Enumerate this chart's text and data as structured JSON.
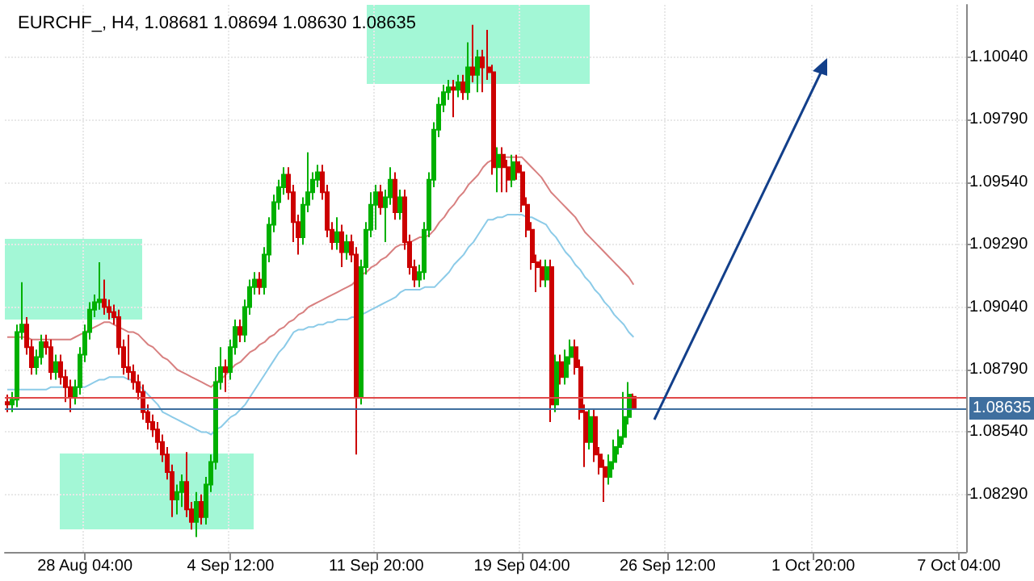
{
  "chart_data": {
    "type": "candlestick",
    "title": "EURCHF_, H4, 1.08681 1.08694 1.08630 1.08635",
    "categories": [
      null,
      null,
      null,
      null,
      null,
      null,
      null,
      null,
      null,
      null,
      null,
      null,
      null,
      null,
      null,
      null,
      "28 Aug 04:00",
      null,
      null,
      null,
      null,
      null,
      null,
      null,
      null,
      null,
      null,
      null,
      null,
      null,
      null,
      null,
      null,
      null,
      null,
      null,
      null,
      null,
      null,
      null,
      null,
      null,
      null,
      null,
      null,
      null,
      "4 Sep 12:00",
      null,
      null,
      null,
      null,
      null,
      null,
      null,
      null,
      null,
      null,
      null,
      null,
      null,
      null,
      null,
      null,
      null,
      null,
      null,
      null,
      null,
      null,
      null,
      null,
      null,
      null,
      null,
      null,
      null,
      "11 Sep 20:00",
      null,
      null,
      null,
      null,
      null,
      null,
      null,
      null,
      null,
      null,
      null,
      null,
      null,
      null,
      null,
      null,
      null,
      null,
      null,
      null,
      null,
      null,
      null,
      null,
      null,
      null,
      null,
      null,
      null,
      "19 Sep 04:00",
      null,
      null,
      null,
      null,
      null,
      null,
      null,
      null,
      null,
      null,
      null,
      null,
      null,
      null,
      null,
      null,
      null,
      null,
      null,
      null,
      null,
      null,
      null,
      null,
      null,
      null,
      null,
      null,
      null,
      "26 Sep 12:00",
      null,
      null,
      null,
      null,
      null,
      null,
      null,
      null,
      null,
      null,
      null,
      null,
      null,
      null,
      null,
      null,
      null,
      null,
      null,
      null,
      null,
      null,
      null,
      null,
      null,
      null,
      null,
      null,
      null,
      "1 Oct 20:00",
      null,
      null,
      null,
      null,
      null,
      null,
      null,
      null,
      null,
      null,
      null,
      null,
      null,
      null,
      null,
      null,
      null,
      null,
      null,
      null,
      null,
      null,
      null,
      null,
      null,
      null,
      null,
      null,
      null,
      "7 Oct 04:00",
      null
    ],
    "ohlc": [
      [
        1.0866,
        1.0869,
        1.0862,
        1.0865
      ],
      [
        1.0865,
        1.087,
        1.0862,
        1.0867
      ],
      [
        1.0867,
        1.0897,
        1.0864,
        1.0894
      ],
      [
        1.0894,
        1.0914,
        1.0891,
        1.0897
      ],
      [
        1.0897,
        1.09,
        1.0885,
        1.0888
      ],
      [
        1.0888,
        1.0891,
        1.0877,
        1.088
      ],
      [
        1.088,
        1.0887,
        1.0877,
        1.0884
      ],
      [
        1.0884,
        1.0893,
        1.0881,
        1.089
      ],
      [
        1.089,
        1.0893,
        1.0885,
        1.0888
      ],
      [
        1.0888,
        1.0891,
        1.0875,
        1.0878
      ],
      [
        1.0878,
        1.0885,
        1.0875,
        1.0882
      ],
      [
        1.0882,
        1.0885,
        1.0873,
        1.0876
      ],
      [
        1.0876,
        1.0879,
        1.0866,
        1.0872
      ],
      [
        1.0872,
        1.0875,
        1.0862,
        1.0868
      ],
      [
        1.0868,
        1.0875,
        1.0865,
        1.0872
      ],
      [
        1.0872,
        1.0888,
        1.0869,
        1.0885
      ],
      [
        1.0885,
        1.0897,
        1.0882,
        1.0894
      ],
      [
        1.0894,
        1.0906,
        1.0891,
        1.0903
      ],
      [
        1.0903,
        1.0909,
        1.09,
        1.0906
      ],
      [
        1.0906,
        1.0922,
        1.0903,
        1.0907
      ],
      [
        1.0907,
        1.0915,
        1.0901,
        1.0904
      ],
      [
        1.0904,
        1.0907,
        1.0899,
        1.0902
      ],
      [
        1.0902,
        1.0905,
        1.0897,
        1.09
      ],
      [
        1.09,
        1.0903,
        1.0885,
        1.0888
      ],
      [
        1.0888,
        1.0891,
        1.0877,
        1.088
      ],
      [
        1.088,
        1.0893,
        1.0875,
        1.0878
      ],
      [
        1.0878,
        1.0881,
        1.0871,
        1.0874
      ],
      [
        1.0874,
        1.0877,
        1.0867,
        1.087
      ],
      [
        1.087,
        1.0873,
        1.0859,
        1.0862
      ],
      [
        1.0862,
        1.0865,
        1.0855,
        1.0858
      ],
      [
        1.0858,
        1.0861,
        1.0852,
        1.0855
      ],
      [
        1.0855,
        1.0858,
        1.0847,
        1.085
      ],
      [
        1.085,
        1.0853,
        1.0842,
        1.0845
      ],
      [
        1.0845,
        1.0848,
        1.0835,
        1.0838
      ],
      [
        1.0838,
        1.0841,
        1.082,
        1.0827
      ],
      [
        1.0827,
        1.0833,
        1.0821,
        1.083
      ],
      [
        1.083,
        1.0837,
        1.0824,
        1.0834
      ],
      [
        1.0834,
        1.0846,
        1.082,
        1.0823
      ],
      [
        1.0823,
        1.0826,
        1.0815,
        1.0818
      ],
      [
        1.0818,
        1.083,
        1.0812,
        1.0826
      ],
      [
        1.0826,
        1.0829,
        1.0817,
        1.082
      ],
      [
        1.082,
        1.0836,
        1.0817,
        1.0833
      ],
      [
        1.0833,
        1.0845,
        1.083,
        1.0842
      ],
      [
        1.0842,
        1.088,
        1.0839,
        1.0874
      ],
      [
        1.0874,
        1.0888,
        1.0871,
        1.088
      ],
      [
        1.088,
        1.0883,
        1.087,
        1.0878
      ],
      [
        1.0878,
        1.0891,
        1.0875,
        1.0888
      ],
      [
        1.0888,
        1.0899,
        1.0885,
        1.0896
      ],
      [
        1.0896,
        1.0899,
        1.089,
        1.0893
      ],
      [
        1.0893,
        1.0907,
        1.089,
        1.0904
      ],
      [
        1.0904,
        1.0915,
        1.0901,
        1.0912
      ],
      [
        1.0912,
        1.0918,
        1.0909,
        1.0915
      ],
      [
        1.0915,
        1.0918,
        1.0909,
        1.0912
      ],
      [
        1.0912,
        1.0928,
        1.0909,
        1.0925
      ],
      [
        1.0925,
        1.094,
        1.0922,
        1.0937
      ],
      [
        1.0937,
        1.0949,
        1.0934,
        1.0946
      ],
      [
        1.0946,
        1.0955,
        1.0943,
        1.0952
      ],
      [
        1.0952,
        1.096,
        1.0949,
        1.0957
      ],
      [
        1.0957,
        1.096,
        1.0947,
        1.095
      ],
      [
        1.095,
        1.0953,
        1.093,
        1.0938
      ],
      [
        1.0938,
        1.0941,
        1.0925,
        1.0932
      ],
      [
        1.0932,
        1.0948,
        1.0929,
        1.0945
      ],
      [
        1.0945,
        1.0966,
        1.0942,
        1.095
      ],
      [
        1.095,
        1.0958,
        1.0947,
        1.0955
      ],
      [
        1.0955,
        1.0961,
        1.0952,
        1.0958
      ],
      [
        1.0958,
        1.0961,
        1.0947,
        1.095
      ],
      [
        1.095,
        1.0953,
        1.0932,
        1.0935
      ],
      [
        1.0935,
        1.0938,
        1.0927,
        1.093
      ],
      [
        1.093,
        1.094,
        1.0927,
        1.0934
      ],
      [
        1.0934,
        1.0937,
        1.092,
        1.0926
      ],
      [
        1.0926,
        1.0933,
        1.0923,
        1.093
      ],
      [
        1.093,
        1.0933,
        1.0922,
        1.0925
      ],
      [
        1.0925,
        1.0928,
        1.0845,
        1.0868
      ],
      [
        1.0868,
        1.0923,
        1.0865,
        1.092
      ],
      [
        1.092,
        1.0938,
        1.0917,
        1.0935
      ],
      [
        1.0935,
        1.095,
        1.0932,
        1.0945
      ],
      [
        1.0945,
        1.0953,
        1.0935,
        1.095
      ],
      [
        1.095,
        1.0953,
        1.0941,
        1.0944
      ],
      [
        1.0944,
        1.0951,
        1.093,
        1.0948
      ],
      [
        1.0948,
        1.096,
        1.0945,
        1.0955
      ],
      [
        1.0955,
        1.0958,
        1.0939,
        1.0942
      ],
      [
        1.0942,
        1.0951,
        1.0939,
        1.0948
      ],
      [
        1.0948,
        1.0951,
        1.0927,
        1.093
      ],
      [
        1.093,
        1.0933,
        1.0917,
        1.092
      ],
      [
        1.092,
        1.0923,
        1.0912,
        1.0915
      ],
      [
        1.0915,
        1.0921,
        1.0912,
        1.0918
      ],
      [
        1.0918,
        1.0938,
        1.0915,
        1.0935
      ],
      [
        1.0935,
        1.0958,
        1.0932,
        1.0955
      ],
      [
        1.0955,
        1.0978,
        1.0952,
        1.0975
      ],
      [
        1.0975,
        1.0988,
        1.0972,
        1.0985
      ],
      [
        1.0985,
        1.0993,
        1.0982,
        1.099
      ],
      [
        1.099,
        1.0995,
        1.0987,
        1.0992
      ],
      [
        1.0992,
        1.0995,
        1.098,
        1.0991
      ],
      [
        1.0991,
        1.0997,
        1.0988,
        1.0994
      ],
      [
        1.0994,
        1.0997,
        1.0987,
        1.099
      ],
      [
        1.099,
        1.101,
        1.0987,
        1.1
      ],
      [
        1.1,
        1.1017,
        1.0994,
        1.0997
      ],
      [
        1.0997,
        1.1007,
        1.099,
        1.1004
      ],
      [
        1.1004,
        1.1007,
        1.099,
        1.1
      ],
      [
        1.1,
        1.1015,
        1.0995,
        1.0998
      ],
      [
        1.0998,
        1.1001,
        1.0957,
        1.096
      ],
      [
        1.096,
        1.0968,
        1.095,
        1.0965
      ],
      [
        1.0965,
        1.0968,
        1.095,
        1.096
      ],
      [
        1.096,
        1.0963,
        1.095,
        1.0955
      ],
      [
        1.0955,
        1.0965,
        1.0952,
        1.0962
      ],
      [
        1.0962,
        1.0965,
        1.0955,
        1.0958
      ],
      [
        1.0958,
        1.0961,
        1.0942,
        1.0945
      ],
      [
        1.0945,
        1.0948,
        1.0932,
        1.0935
      ],
      [
        1.0935,
        1.0938,
        1.0919,
        1.0922
      ],
      [
        1.0922,
        1.0925,
        1.091,
        1.092
      ],
      [
        1.092,
        1.0923,
        1.0912,
        1.0915
      ],
      [
        1.0915,
        1.0923,
        1.0912,
        1.092
      ],
      [
        1.092,
        1.0923,
        1.0858,
        1.0865
      ],
      [
        1.0865,
        1.0885,
        1.0862,
        1.0882
      ],
      [
        1.0882,
        1.0885,
        1.0873,
        1.0876
      ],
      [
        1.0876,
        1.0887,
        1.0873,
        1.0884
      ],
      [
        1.0884,
        1.0891,
        1.0881,
        1.0888
      ],
      [
        1.0888,
        1.0891,
        1.0877,
        1.088
      ],
      [
        1.088,
        1.0883,
        1.0859,
        1.0862
      ],
      [
        1.0862,
        1.0865,
        1.084,
        1.085
      ],
      [
        1.085,
        1.0863,
        1.0847,
        1.086
      ],
      [
        1.086,
        1.0863,
        1.0842,
        1.0845
      ],
      [
        1.0845,
        1.0848,
        1.0837,
        1.084
      ],
      [
        1.084,
        1.0843,
        1.0826,
        1.0836
      ],
      [
        1.0836,
        1.0845,
        1.0833,
        1.0842
      ],
      [
        1.0842,
        1.0851,
        1.0839,
        1.0848
      ],
      [
        1.0848,
        1.0855,
        1.0845,
        1.0852
      ],
      [
        1.0852,
        1.087,
        1.0849,
        1.086
      ],
      [
        1.086,
        1.0874,
        1.0857,
        1.0869
      ],
      [
        1.08681,
        1.08694,
        1.0863,
        1.08635
      ],
      null,
      null,
      null,
      null,
      null,
      null,
      null,
      null,
      null,
      null,
      null,
      null,
      null,
      null,
      null,
      null,
      null,
      null,
      null,
      null,
      null,
      null,
      null,
      null,
      null,
      null,
      null,
      null,
      null,
      null,
      null,
      null,
      null,
      null,
      null,
      null,
      null,
      null,
      null,
      null,
      null,
      null,
      null,
      null,
      null,
      null,
      null,
      null,
      null,
      null,
      null,
      null,
      null,
      null,
      null,
      null,
      null,
      null,
      null,
      null,
      null,
      null,
      null,
      null,
      null,
      null,
      null,
      null
    ],
    "series": [
      {
        "type": "line",
        "color": "#d88080",
        "values": [
          1.0892,
          1.0892,
          1.0892,
          1.0892,
          1.0892,
          1.0891,
          1.0891,
          1.0891,
          1.0891,
          1.0891,
          1.0891,
          1.0891,
          1.0891,
          1.0891,
          1.0892,
          1.0893,
          1.0894,
          1.0895,
          1.0896,
          1.0897,
          1.0898,
          1.0898,
          1.0897,
          1.0896,
          1.0895,
          1.0894,
          1.0894,
          1.0893,
          1.0891,
          1.0889,
          1.0888,
          1.0886,
          1.0884,
          1.0883,
          1.0881,
          1.0879,
          1.0878,
          1.0877,
          1.0876,
          1.0875,
          1.0874,
          1.0873,
          1.0872,
          1.0874,
          1.0875,
          1.0877,
          1.0879,
          1.0881,
          1.0882,
          1.0884,
          1.0886,
          1.0887,
          1.0889,
          1.089,
          1.0892,
          1.0893,
          1.0895,
          1.0896,
          1.0898,
          1.0899,
          1.0901,
          1.0902,
          1.0904,
          1.0905,
          1.0906,
          1.0907,
          1.0908,
          1.0909,
          1.091,
          1.0911,
          1.0912,
          1.0913,
          1.0915,
          1.0917,
          1.0918,
          1.092,
          1.0921,
          1.0923,
          1.0924,
          1.0926,
          1.0928,
          1.0929,
          1.0929,
          1.093,
          1.0931,
          1.0932,
          1.0932,
          1.0933,
          1.0935,
          1.0938,
          1.094,
          1.0943,
          1.0945,
          1.0948,
          1.095,
          1.0953,
          1.0955,
          1.0957,
          1.096,
          1.0962,
          1.0963,
          1.0963,
          1.0964,
          1.0964,
          1.0964,
          1.0964,
          1.0964,
          1.0962,
          1.096,
          1.0958,
          1.0956,
          1.0953,
          1.095,
          1.0948,
          1.0946,
          1.0944,
          1.0942,
          1.094,
          1.0937,
          1.0934,
          1.0932,
          1.093,
          1.0928,
          1.0926,
          1.0924,
          1.0922,
          1.092,
          1.0918,
          1.0916,
          1.0913,
          null,
          null,
          null,
          null,
          null,
          null,
          null,
          null,
          null,
          null,
          null,
          null,
          null,
          null,
          null,
          null,
          null,
          null,
          null,
          null,
          null,
          null,
          null,
          null,
          null,
          null,
          null,
          null,
          null,
          null,
          null,
          null,
          null,
          null,
          null,
          null,
          null,
          null,
          null,
          null,
          null,
          null,
          null,
          null,
          null,
          null,
          null,
          null,
          null,
          null,
          null,
          null,
          null,
          null,
          null,
          null,
          null,
          null,
          null,
          null,
          null,
          null,
          null,
          null,
          null,
          null,
          null,
          null
        ]
      },
      {
        "type": "line",
        "color": "#8ccbe8",
        "values": [
          1.0871,
          1.0871,
          1.0871,
          1.0871,
          1.0871,
          1.0871,
          1.0871,
          1.0871,
          1.0871,
          1.0872,
          1.0872,
          1.0872,
          1.0872,
          null,
          1.0872,
          1.0872,
          1.0872,
          1.0873,
          1.0874,
          1.0875,
          1.0875,
          1.0876,
          1.0876,
          1.0876,
          1.0876,
          1.0875,
          1.0875,
          1.0873,
          1.0871,
          1.0869,
          1.0867,
          1.0865,
          1.0862,
          1.0861,
          1.086,
          1.0859,
          1.0858,
          1.0857,
          1.0856,
          1.0855,
          1.0854,
          1.0854,
          1.0853,
          1.0855,
          1.0856,
          1.0858,
          1.086,
          1.0861,
          1.0863,
          1.0865,
          1.0868,
          1.0871,
          1.0874,
          1.0877,
          1.088,
          1.0883,
          1.0886,
          1.0888,
          1.0891,
          1.0894,
          1.0895,
          1.0895,
          1.0896,
          1.0896,
          1.0897,
          1.0897,
          1.0898,
          1.0898,
          1.0899,
          1.0899,
          1.0899,
          1.09,
          1.09,
          1.0901,
          1.0902,
          1.0903,
          1.0904,
          1.0905,
          1.0906,
          1.0907,
          1.0908,
          1.091,
          1.0911,
          1.0911,
          1.0911,
          1.0911,
          1.0912,
          1.0912,
          1.0912,
          1.0914,
          1.0916,
          1.0918,
          1.0921,
          1.0923,
          1.0925,
          1.0928,
          1.093,
          1.0933,
          1.0936,
          1.0939,
          1.0939,
          1.094,
          1.094,
          1.0941,
          1.0941,
          1.0941,
          1.0941,
          1.094,
          1.094,
          1.0939,
          1.0938,
          1.0937,
          1.0934,
          1.0932,
          1.0929,
          1.0926,
          1.0924,
          1.0921,
          1.0919,
          1.0916,
          1.0914,
          1.0911,
          1.0909,
          1.0906,
          1.0904,
          1.0901,
          1.0899,
          1.0897,
          1.0894,
          1.0892,
          null,
          null,
          null,
          null,
          null,
          null,
          null,
          null,
          null,
          null,
          null,
          null,
          null,
          null,
          null,
          null,
          null,
          null,
          null,
          null,
          null,
          null,
          null,
          null,
          null,
          null,
          null,
          null,
          null,
          null,
          null,
          null,
          null,
          null,
          null,
          null,
          null,
          null,
          null,
          null,
          null,
          null,
          null,
          null,
          null,
          null,
          null,
          null,
          null,
          null,
          null,
          null,
          null,
          null,
          null,
          null,
          null,
          null,
          null,
          null,
          null,
          null,
          null,
          null,
          null,
          null,
          null,
          null
        ]
      }
    ],
    "ylim": [
      1.0806,
      1.1025
    ],
    "yticks": [
      {
        "value": 1.0829,
        "label": "1.08290"
      },
      {
        "value": 1.0854,
        "label": "1.08540"
      },
      {
        "value": 1.0879,
        "label": "1.08790"
      },
      {
        "value": 1.0904,
        "label": "1.09040"
      },
      {
        "value": 1.0929,
        "label": "1.09290"
      },
      {
        "value": 1.0954,
        "label": "1.09540"
      },
      {
        "value": 1.0979,
        "label": "1.09790"
      },
      {
        "value": 1.1004,
        "label": "1.10040"
      }
    ],
    "grid": true,
    "ref_lines": [
      {
        "axis": "y",
        "value": 1.08681,
        "label": null,
        "color": "#e04848"
      },
      {
        "axis": "y",
        "value": 1.08635,
        "label": "1.08635",
        "color": "#3f6f9f"
      }
    ]
  }
}
